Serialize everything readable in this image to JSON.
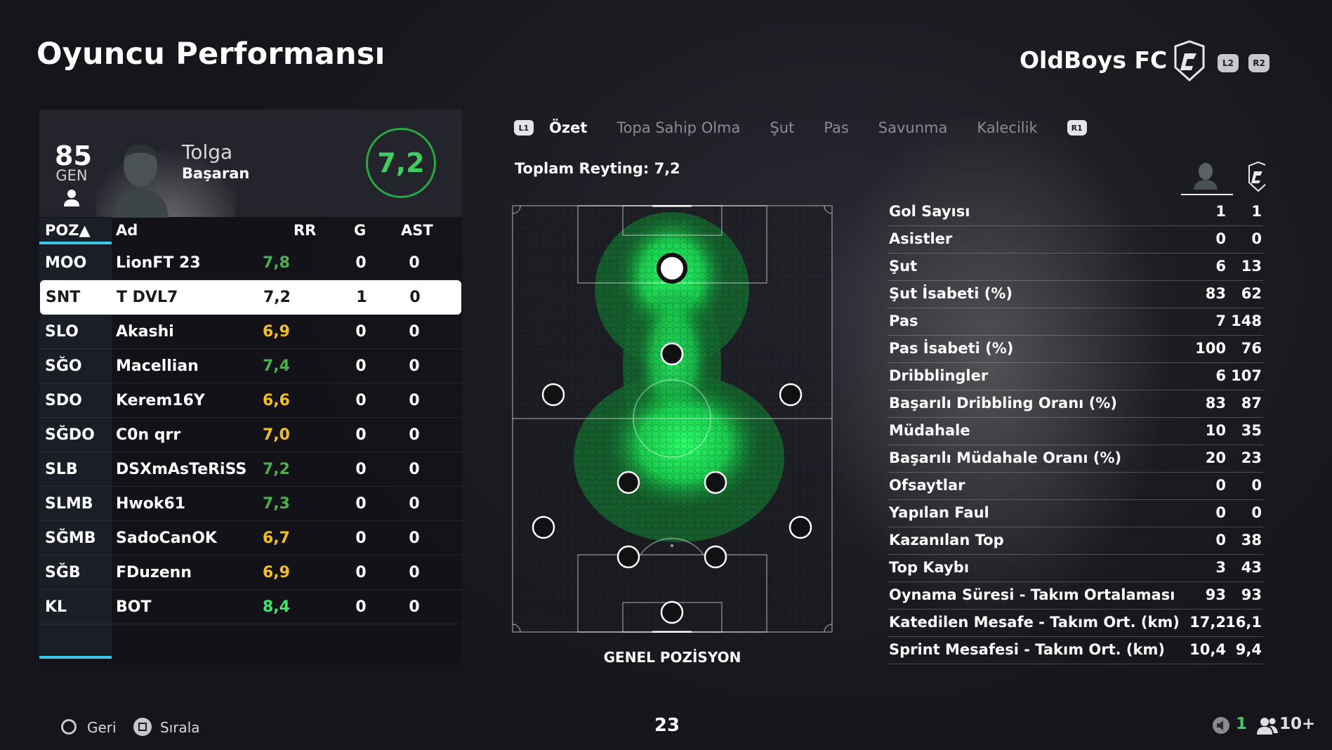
{
  "page": {
    "title": "Oyuncu Performansı"
  },
  "club": {
    "name": "OldBoys FC",
    "l2": "L2",
    "r2": "R2"
  },
  "player": {
    "overall": "85",
    "overall_label": "GEN",
    "first_name": "Tolga",
    "last_name": "Başaran",
    "rating": "7,2"
  },
  "table": {
    "headers": {
      "pos": "POZ▲",
      "name": "Ad",
      "rr": "RR",
      "g": "G",
      "ast": "AST"
    },
    "rows": [
      {
        "pos": "MOO",
        "name": "LionFT 23",
        "rr": "7,8",
        "g": "0",
        "ast": "0",
        "rr_color": "green"
      },
      {
        "pos": "SNT",
        "name": "T DVL7",
        "rr": "7,2",
        "g": "1",
        "ast": "0",
        "rr_color": "dark",
        "selected": true
      },
      {
        "pos": "SLO",
        "name": "Akashi",
        "rr": "6,9",
        "g": "0",
        "ast": "0",
        "rr_color": "yellow"
      },
      {
        "pos": "SĞO",
        "name": "Macellian",
        "rr": "7,4",
        "g": "0",
        "ast": "0",
        "rr_color": "green"
      },
      {
        "pos": "SDO",
        "name": "Kerem16Y",
        "rr": "6,6",
        "g": "0",
        "ast": "0",
        "rr_color": "yellow"
      },
      {
        "pos": "SĞDO",
        "name": "C0n qrr",
        "rr": "7,0",
        "g": "0",
        "ast": "0",
        "rr_color": "yellow"
      },
      {
        "pos": "SLB",
        "name": "DSXmAsTeRiSS",
        "rr": "7,2",
        "g": "0",
        "ast": "0",
        "rr_color": "green"
      },
      {
        "pos": "SLMB",
        "name": "Hwok61",
        "rr": "7,3",
        "g": "0",
        "ast": "0",
        "rr_color": "green"
      },
      {
        "pos": "SĞMB",
        "name": "SadoCanOK",
        "rr": "6,7",
        "g": "0",
        "ast": "0",
        "rr_color": "yellow"
      },
      {
        "pos": "SĞB",
        "name": "FDuzenn",
        "rr": "6,9",
        "g": "0",
        "ast": "0",
        "rr_color": "yellow"
      },
      {
        "pos": "KL",
        "name": "BOT",
        "rr": "8,4",
        "g": "0",
        "ast": "0",
        "rr_color": "bright"
      }
    ]
  },
  "tabs": {
    "left_key": "L1",
    "right_key": "R1",
    "items": [
      "Özet",
      "Topa Sahip Olma",
      "Şut",
      "Pas",
      "Savunma",
      "Kalecilik"
    ],
    "active": 0
  },
  "summary": {
    "total_rating": "Toplam Reyting: 7,2"
  },
  "pitch": {
    "caption": "GENEL POZİSYON"
  },
  "stats": [
    {
      "label": "Gol Sayısı",
      "player": "1",
      "team": "1"
    },
    {
      "label": "Asistler",
      "player": "0",
      "team": "0"
    },
    {
      "label": "Şut",
      "player": "6",
      "team": "13"
    },
    {
      "label": "Şut İsabeti (%)",
      "player": "83",
      "team": "62"
    },
    {
      "label": "Pas",
      "player": "7",
      "team": "148"
    },
    {
      "label": "Pas İsabeti (%)",
      "player": "100",
      "team": "76"
    },
    {
      "label": "Dribblingler",
      "player": "6",
      "team": "107"
    },
    {
      "label": "Başarılı Dribbling Oranı (%)",
      "player": "83",
      "team": "87"
    },
    {
      "label": "Müdahale",
      "player": "10",
      "team": "35"
    },
    {
      "label": "Başarılı Müdahale Oranı (%)",
      "player": "20",
      "team": "23"
    },
    {
      "label": "Ofsaytlar",
      "player": "0",
      "team": "0"
    },
    {
      "label": "Yapılan Faul",
      "player": "0",
      "team": "0"
    },
    {
      "label": "Kazanılan Top",
      "player": "0",
      "team": "38"
    },
    {
      "label": "Top Kaybı",
      "player": "3",
      "team": "43"
    },
    {
      "label": "Oynama Süresi - Takım Ortalaması",
      "player": "93",
      "team": "93"
    },
    {
      "label": "Katedilen Mesafe - Takım Ort. (km)",
      "player": "17,2",
      "team": "16,1"
    },
    {
      "label": "Sprint Mesafesi - Takım Ort. (km)",
      "player": "10,4",
      "team": "9,4"
    }
  ],
  "footer": {
    "back_label": "Geri",
    "sort_label": "Sırala",
    "page_number": "23",
    "mic_count": "1",
    "players_count": "10+"
  },
  "colors": {
    "accent": "#3cc8e6",
    "rating_green": "#3ecf60",
    "rating_yellow": "#f2c023",
    "heat": "#2bff6a"
  }
}
